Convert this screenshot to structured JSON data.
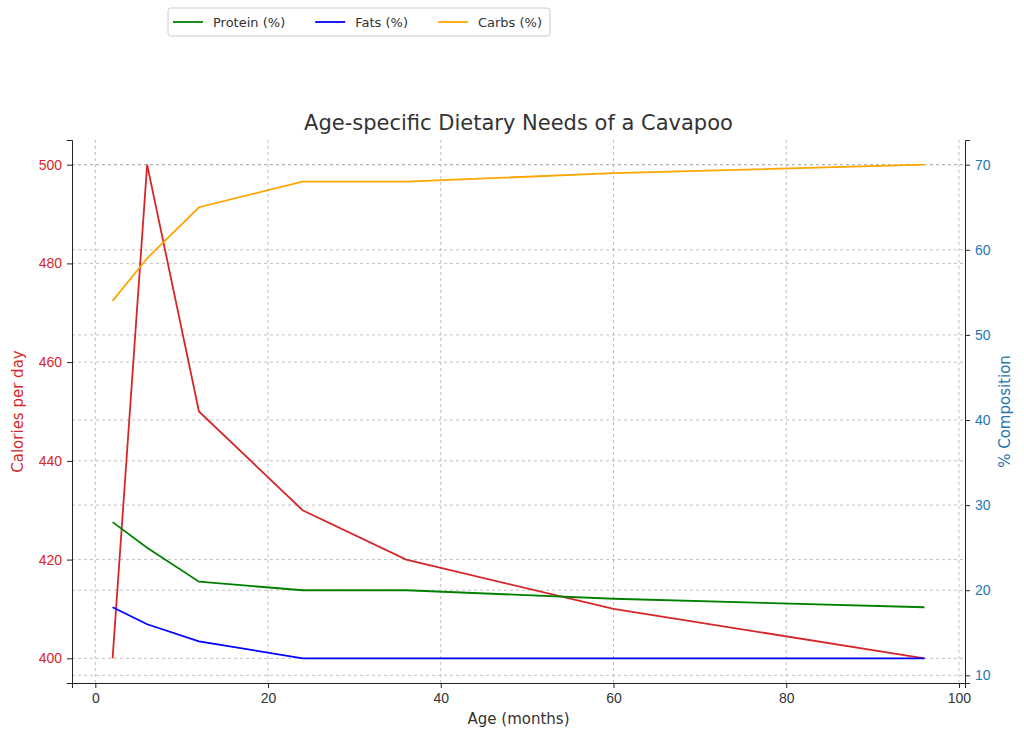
{
  "chart_data": {
    "type": "line",
    "title": "Age-specific Dietary Needs of a Cavapoo",
    "xlabel": "Age (months)",
    "ylabel": "Calories per day",
    "y2label": "% Composition",
    "x": [
      2,
      6,
      12,
      24,
      36,
      60,
      96
    ],
    "series": [
      {
        "color": "#d62728",
        "values": [
          400,
          500,
          450,
          430,
          420,
          410,
          400
        ]
      },
      {
        "name": "Protein (%)",
        "color": "#008000",
        "axis": "y2",
        "values": [
          28,
          25,
          21,
          20,
          20,
          19,
          18
        ]
      },
      {
        "name": "Fats (%)",
        "color": "#0000ff",
        "axis": "y2",
        "values": [
          18,
          16,
          14,
          12,
          12,
          12,
          12
        ]
      },
      {
        "name": "Carbs (%)",
        "color": "#ffa500",
        "axis": "y2",
        "values": [
          54,
          59,
          65,
          68,
          68,
          69,
          70
        ]
      }
    ],
    "xlim": [
      -2.7,
      100.7
    ],
    "xticks": [
      0,
      20,
      40,
      60,
      80,
      100
    ],
    "ylim": [
      395,
      505
    ],
    "yticks": [
      400,
      420,
      440,
      460,
      480,
      500
    ],
    "y2lim": [
      9.1,
      72.9
    ],
    "y2ticks": [
      10,
      20,
      30,
      40,
      50,
      60,
      70
    ],
    "grid": true,
    "legend": "upper left"
  }
}
